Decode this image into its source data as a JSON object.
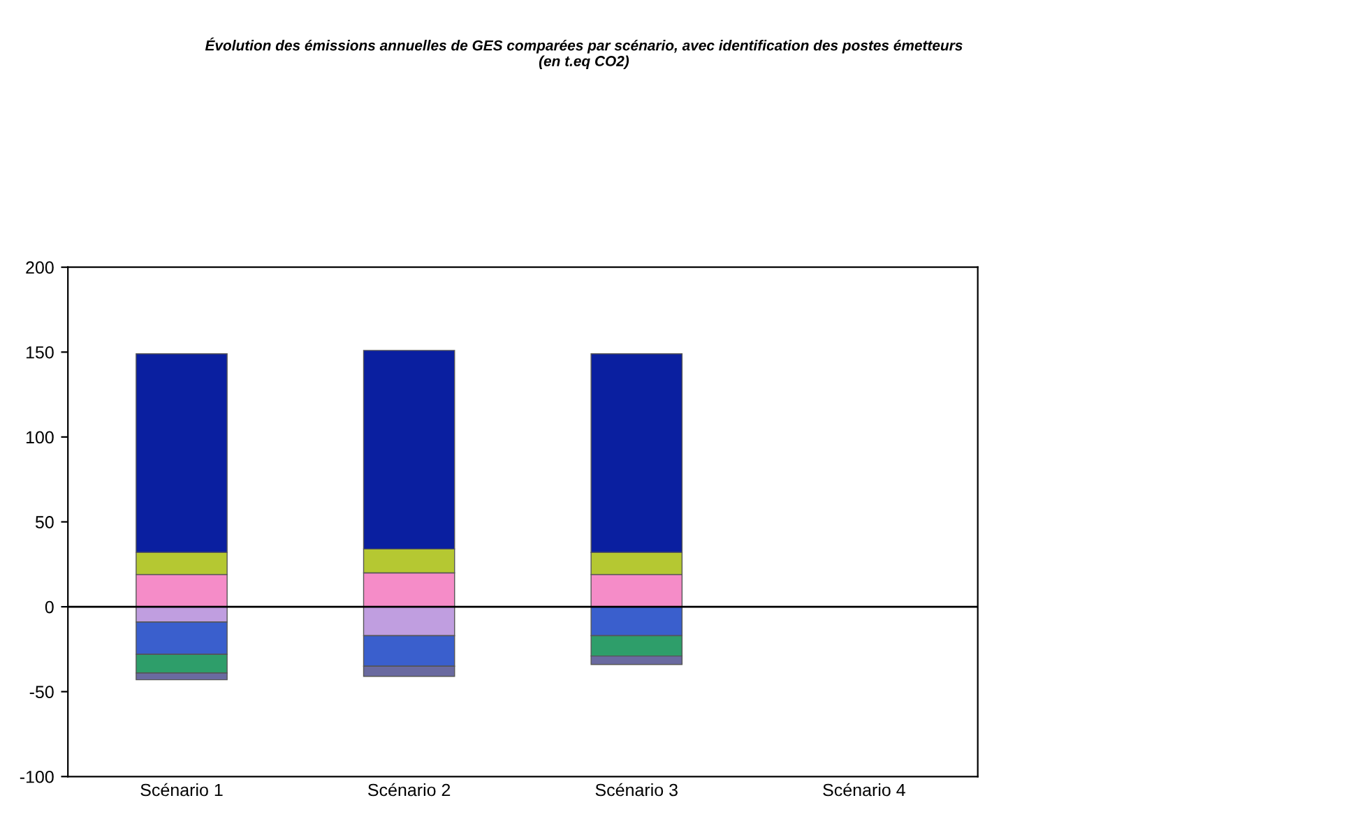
{
  "chart_data": {
    "type": "bar",
    "stacked": true,
    "title": "Évolution des émissions annuelles de GES comparées par scénario, avec identification des postes émetteurs\n(en t.eq CO2)",
    "categories": [
      "Scénario 1",
      "Scénario 2",
      "Scénario 3",
      "Scénario 4"
    ],
    "series": [
      {
        "color": "#f58cc8",
        "values": [
          19,
          20,
          19,
          null
        ]
      },
      {
        "color": "#b5c832",
        "values": [
          13,
          14,
          13,
          null
        ]
      },
      {
        "color": "#0a1fa0",
        "values": [
          117,
          117,
          117,
          null
        ]
      },
      {
        "color": "#c09ee0",
        "values": [
          -9,
          -17,
          null,
          null
        ]
      },
      {
        "color": "#3a5fcd",
        "values": [
          -19,
          -18,
          -17,
          null
        ]
      },
      {
        "color": "#2e9e6a",
        "values": [
          -11,
          null,
          -12,
          null
        ]
      },
      {
        "color": "#6a6aa0",
        "values": [
          -4,
          -6,
          -5,
          null
        ]
      }
    ],
    "ylim": [
      -100,
      200
    ],
    "yticks": [
      -100,
      -50,
      0,
      50,
      100,
      150,
      200
    ]
  }
}
